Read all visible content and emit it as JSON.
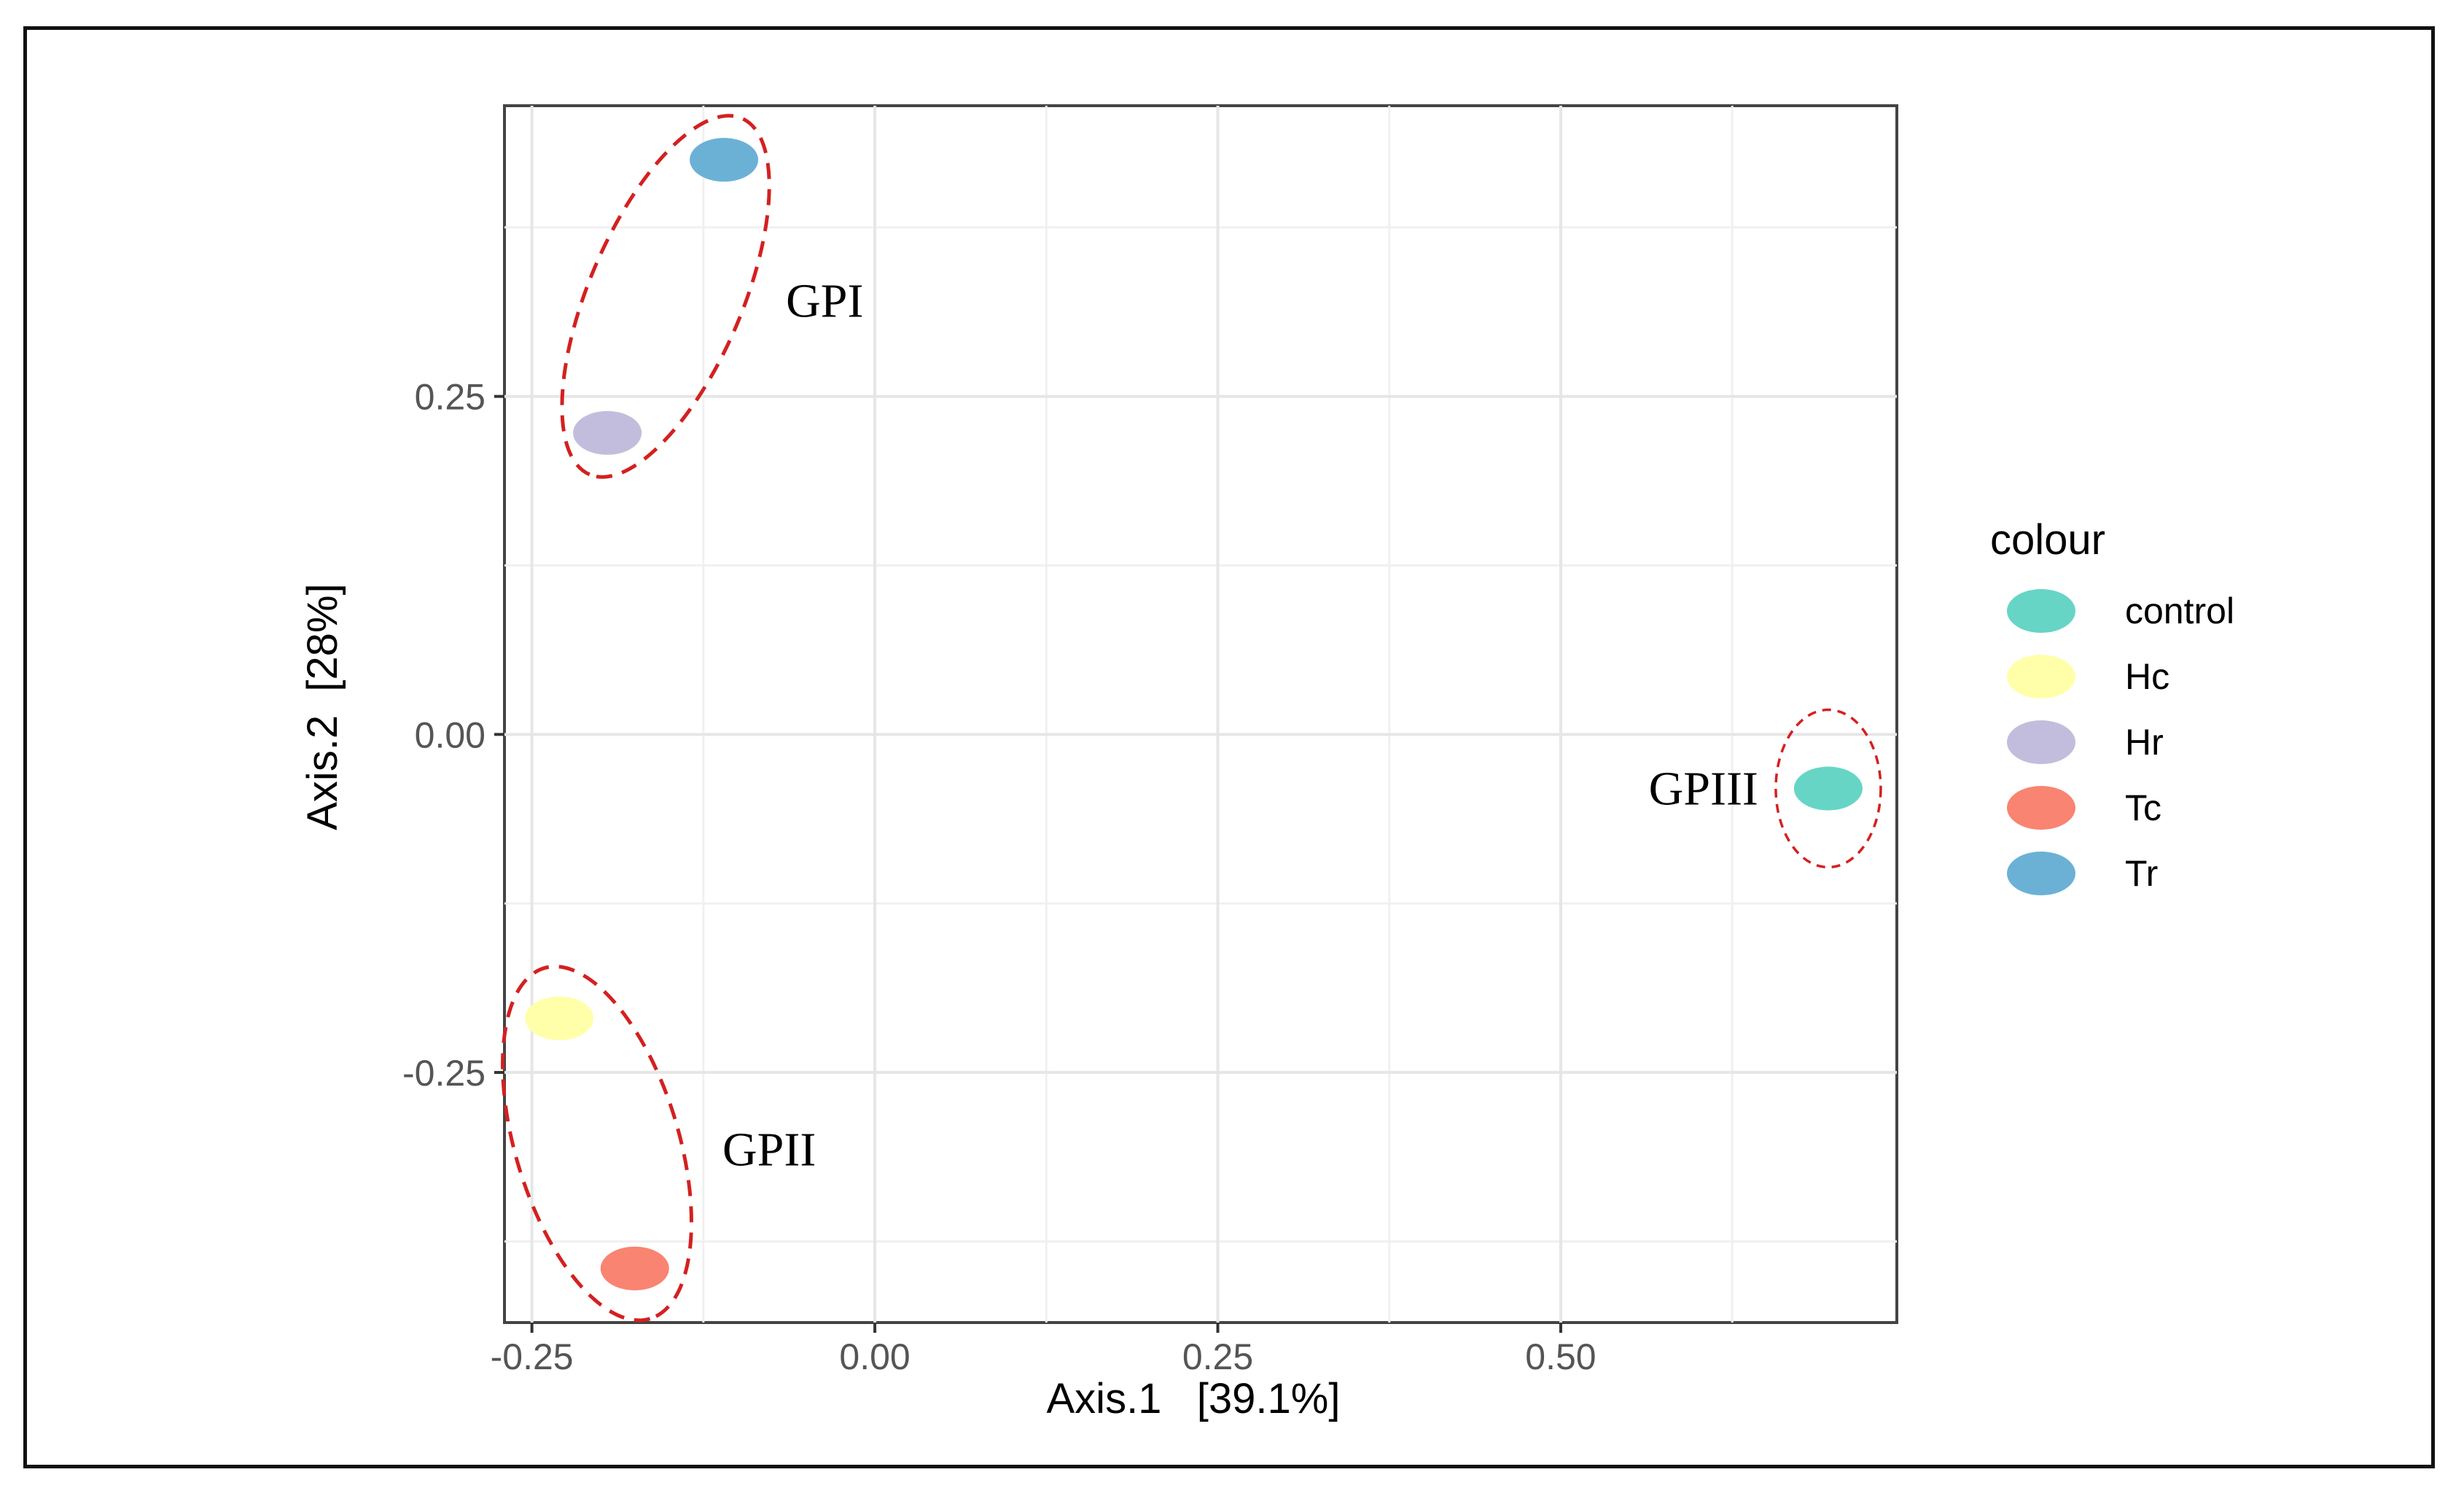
{
  "chart_data": {
    "type": "scatter",
    "title": "",
    "xlabel": "Axis.1   [39.1%]",
    "ylabel": "Axis.2  [28%]",
    "xlim": [
      -0.27,
      0.745
    ],
    "ylim": [
      -0.435,
      0.465
    ],
    "x_ticks": [
      -0.25,
      0.0,
      0.25,
      0.5
    ],
    "x_tick_labels": [
      "-0.25",
      "0.00",
      "0.25",
      "0.50"
    ],
    "y_ticks": [
      -0.25,
      0.0,
      0.25
    ],
    "y_tick_labels": [
      "-0.25",
      "0.00",
      "0.25"
    ],
    "grid": true,
    "legend": {
      "title": "colour",
      "position": "right",
      "entries": [
        {
          "name": "control",
          "color": "#66d5c6"
        },
        {
          "name": "Hc",
          "color": "#ffffaa"
        },
        {
          "name": "Hr",
          "color": "#c2bddc"
        },
        {
          "name": "Tc",
          "color": "#f98471"
        },
        {
          "name": "Tr",
          "color": "#6bb1d6"
        }
      ]
    },
    "points": [
      {
        "name": "Tr",
        "x": -0.11,
        "y": 0.425,
        "color": "#6bb1d6"
      },
      {
        "name": "Hr",
        "x": -0.195,
        "y": 0.223,
        "color": "#c2bddc"
      },
      {
        "name": "control",
        "x": 0.695,
        "y": -0.04,
        "color": "#66d5c6"
      },
      {
        "name": "Hc",
        "x": -0.23,
        "y": -0.21,
        "color": "#ffffaa"
      },
      {
        "name": "Tc",
        "x": -0.175,
        "y": -0.395,
        "color": "#f98471"
      }
    ],
    "annotations": [
      {
        "label": "GPI",
        "members": [
          "Tr",
          "Hr"
        ],
        "color": "#d42020"
      },
      {
        "label": "GPII",
        "members": [
          "Hc",
          "Tc"
        ],
        "color": "#d42020"
      },
      {
        "label": "GPIII",
        "members": [
          "control"
        ],
        "color": "#d42020"
      }
    ]
  }
}
